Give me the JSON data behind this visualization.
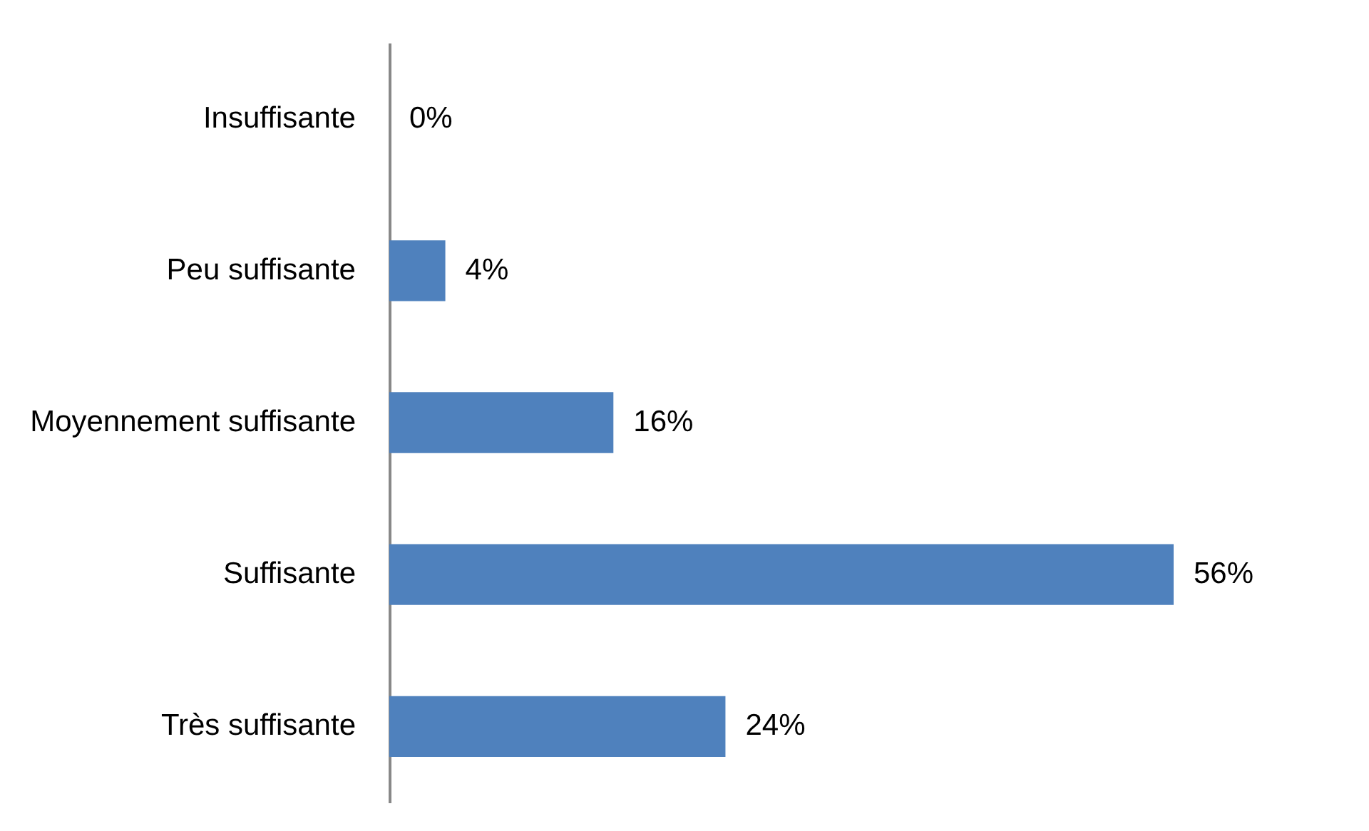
{
  "chart_data": {
    "type": "bar",
    "orientation": "horizontal",
    "categories": [
      "Insuffisante",
      "Peu suffisante",
      "Moyennement suffisante",
      "Suffisante",
      "Très suffisante"
    ],
    "values": [
      0,
      4,
      16,
      56,
      24
    ],
    "value_labels": [
      "0%",
      "4%",
      "16%",
      "56%",
      "24%"
    ],
    "color": "#4f81bd"
  }
}
